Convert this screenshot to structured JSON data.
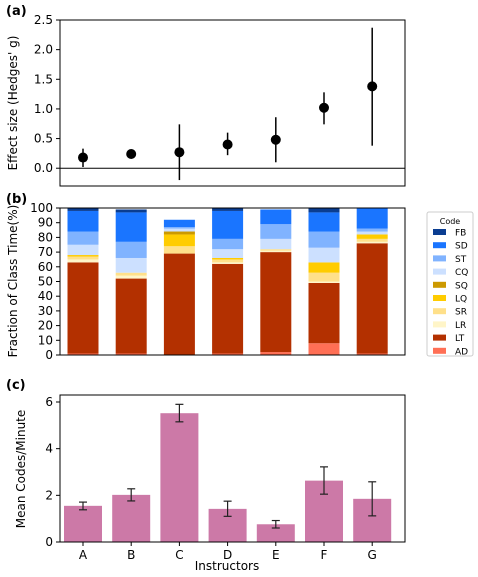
{
  "chart_data": [
    {
      "panel": "(a)",
      "type": "scatter",
      "ylabel": "Effect size (Hedges' g)",
      "ylim": [
        -0.3,
        2.5
      ],
      "yticks": [
        "0.0",
        "0.5",
        "1.0",
        "1.5",
        "2.0",
        "2.5"
      ],
      "categories": [
        "A",
        "B",
        "C",
        "D",
        "E",
        "F",
        "G"
      ],
      "values": [
        0.18,
        0.24,
        0.27,
        0.4,
        0.48,
        1.02,
        1.38
      ],
      "err_low": [
        0.02,
        0.2,
        -0.2,
        0.22,
        0.1,
        0.74,
        0.38
      ],
      "err_high": [
        0.33,
        0.29,
        0.74,
        0.6,
        0.86,
        1.28,
        2.37
      ],
      "zero_line": true
    },
    {
      "panel": "(b)",
      "type": "bar",
      "stacked": true,
      "ylabel": "Fraction of Class Time(%)",
      "ylim": [
        0,
        100
      ],
      "yticks": [
        "0",
        "10",
        "20",
        "30",
        "40",
        "50",
        "60",
        "70",
        "80",
        "90",
        "100"
      ],
      "categories": [
        "A",
        "B",
        "C",
        "D",
        "E",
        "F",
        "G"
      ],
      "legend_title": "Code",
      "legend_position": "right",
      "series": [
        {
          "name": "AD",
          "color": "#ff6f55",
          "values": [
            1,
            1,
            0,
            1,
            2,
            8,
            1
          ]
        },
        {
          "name": "LT",
          "color": "#b33000",
          "values": [
            62,
            51,
            69,
            61,
            68,
            41,
            75
          ]
        },
        {
          "name": "LR",
          "color": "#fff5c8",
          "values": [
            2,
            2,
            0,
            1,
            1,
            1,
            1
          ]
        },
        {
          "name": "SR",
          "color": "#ffe08a",
          "values": [
            2,
            2,
            5,
            2,
            1,
            6,
            2
          ]
        },
        {
          "name": "LQ",
          "color": "#ffcc00",
          "values": [
            1,
            0,
            8,
            1,
            0,
            7,
            3
          ]
        },
        {
          "name": "SQ",
          "color": "#cc9900",
          "values": [
            0,
            0,
            2,
            0,
            0,
            0,
            0
          ]
        },
        {
          "name": "CQ",
          "color": "#cce0ff",
          "values": [
            7,
            10,
            2,
            6,
            7,
            10,
            2
          ]
        },
        {
          "name": "ST",
          "color": "#80b3ff",
          "values": [
            9,
            11,
            1,
            7,
            10,
            11,
            2
          ]
        },
        {
          "name": "SD",
          "color": "#1a75ff",
          "values": [
            14,
            20,
            5,
            19,
            10,
            13,
            14
          ]
        },
        {
          "name": "FB",
          "color": "#0a3d91",
          "values": [
            2,
            2,
            0,
            2,
            0,
            3,
            0
          ]
        }
      ],
      "legend_order": [
        "FB",
        "SD",
        "ST",
        "CQ",
        "SQ",
        "LQ",
        "SR",
        "LR",
        "LT",
        "AD"
      ]
    },
    {
      "panel": "(c)",
      "type": "bar",
      "ylabel": "Mean Codes/Minute",
      "xlabel": "Instructors",
      "ylim": [
        0,
        6.3
      ],
      "yticks": [
        "0",
        "2",
        "4",
        "6"
      ],
      "categories": [
        "A",
        "B",
        "C",
        "D",
        "E",
        "F",
        "G"
      ],
      "values": [
        1.55,
        2.02,
        5.52,
        1.42,
        0.76,
        2.63,
        1.85
      ],
      "err_low": [
        1.38,
        1.76,
        5.15,
        1.1,
        0.6,
        2.05,
        1.12
      ],
      "err_high": [
        1.71,
        2.28,
        5.9,
        1.75,
        0.92,
        3.22,
        2.58
      ],
      "bar_color": "#cc79a7"
    }
  ]
}
